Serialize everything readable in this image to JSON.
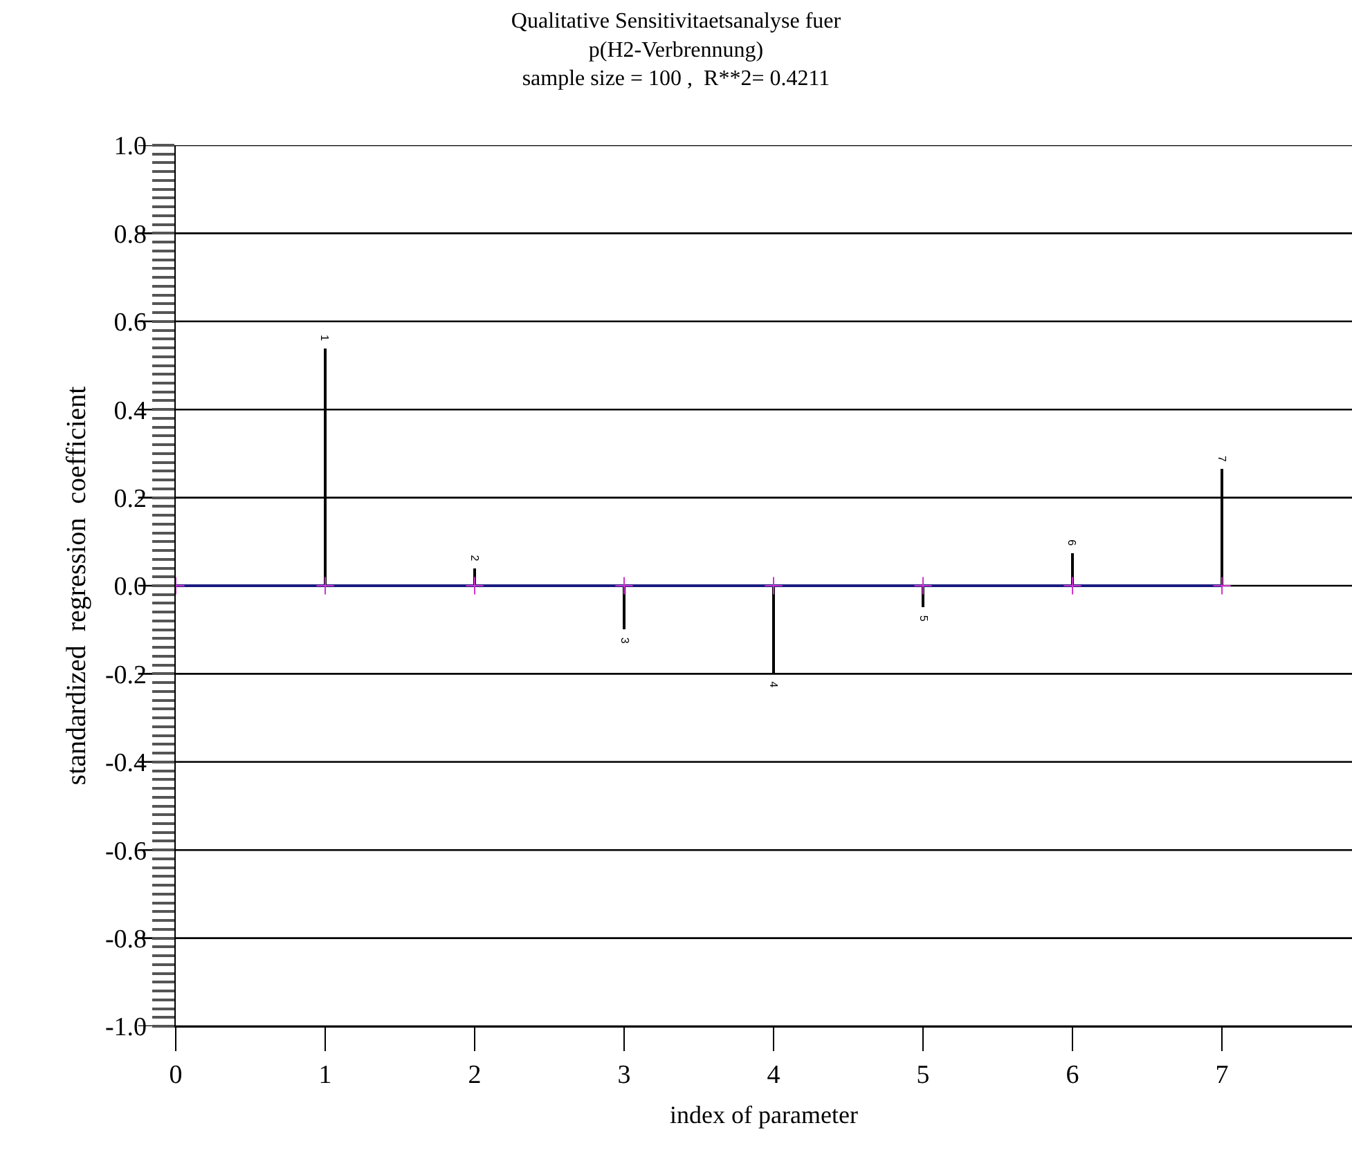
{
  "chart_data": {
    "type": "bar",
    "title": "Qualitative Sensitivitaetsanalyse fuer\np(H2-Verbrennung)\nsample size = 100 ,  R**2= 0.4211",
    "xlabel": "index of parameter",
    "ylabel": "standardized  regression  coefficient",
    "xlim": [
      0,
      7.87
    ],
    "xticks": [
      0,
      1,
      2,
      3,
      4,
      5,
      6,
      7
    ],
    "ylim": [
      -1,
      1
    ],
    "yticks": [
      {
        "value": -1,
        "label": "-1.0"
      },
      {
        "value": -0.98,
        "label": null
      },
      {
        "value": -0.96,
        "label": null
      },
      {
        "value": -0.94,
        "label": null
      },
      {
        "value": -0.92,
        "label": null
      },
      {
        "value": -0.9,
        "label": null
      },
      {
        "value": -0.88,
        "label": null
      },
      {
        "value": -0.86,
        "label": null
      },
      {
        "value": -0.84,
        "label": null
      },
      {
        "value": -0.82,
        "label": null
      },
      {
        "value": -0.8,
        "label": "-0.8"
      },
      {
        "value": -0.78,
        "label": null
      },
      {
        "value": -0.76,
        "label": null
      },
      {
        "value": -0.74,
        "label": null
      },
      {
        "value": -0.72,
        "label": null
      },
      {
        "value": -0.7,
        "label": null
      },
      {
        "value": -0.68,
        "label": null
      },
      {
        "value": -0.66,
        "label": null
      },
      {
        "value": -0.64,
        "label": null
      },
      {
        "value": -0.62,
        "label": null
      },
      {
        "value": -0.6,
        "label": "-0.6"
      },
      {
        "value": -0.58,
        "label": null
      },
      {
        "value": -0.56,
        "label": null
      },
      {
        "value": -0.54,
        "label": null
      },
      {
        "value": -0.52,
        "label": null
      },
      {
        "value": -0.5,
        "label": null
      },
      {
        "value": -0.48,
        "label": null
      },
      {
        "value": -0.46,
        "label": null
      },
      {
        "value": -0.44,
        "label": null
      },
      {
        "value": -0.42,
        "label": null
      },
      {
        "value": -0.4,
        "label": "-0.4"
      },
      {
        "value": -0.38,
        "label": null
      },
      {
        "value": -0.36,
        "label": null
      },
      {
        "value": -0.34,
        "label": null
      },
      {
        "value": -0.32,
        "label": null
      },
      {
        "value": -0.3,
        "label": null
      },
      {
        "value": -0.28,
        "label": null
      },
      {
        "value": -0.26,
        "label": null
      },
      {
        "value": -0.24,
        "label": null
      },
      {
        "value": -0.22,
        "label": null
      },
      {
        "value": -0.2,
        "label": "-0.2"
      },
      {
        "value": -0.18,
        "label": null
      },
      {
        "value": -0.16,
        "label": null
      },
      {
        "value": -0.14,
        "label": null
      },
      {
        "value": -0.12,
        "label": null
      },
      {
        "value": -0.1,
        "label": null
      },
      {
        "value": -0.08,
        "label": null
      },
      {
        "value": -0.06,
        "label": null
      },
      {
        "value": -0.04,
        "label": null
      },
      {
        "value": -0.02,
        "label": null
      },
      {
        "value": 0,
        "label": "0.0"
      },
      {
        "value": 0.02,
        "label": null
      },
      {
        "value": 0.04,
        "label": null
      },
      {
        "value": 0.06,
        "label": null
      },
      {
        "value": 0.08,
        "label": null
      },
      {
        "value": 0.1,
        "label": null
      },
      {
        "value": 0.12,
        "label": null
      },
      {
        "value": 0.14,
        "label": null
      },
      {
        "value": 0.16,
        "label": null
      },
      {
        "value": 0.18,
        "label": null
      },
      {
        "value": 0.2,
        "label": "0.2"
      },
      {
        "value": 0.22,
        "label": null
      },
      {
        "value": 0.24,
        "label": null
      },
      {
        "value": 0.26,
        "label": null
      },
      {
        "value": 0.28,
        "label": null
      },
      {
        "value": 0.3,
        "label": null
      },
      {
        "value": 0.32,
        "label": null
      },
      {
        "value": 0.34,
        "label": null
      },
      {
        "value": 0.36,
        "label": null
      },
      {
        "value": 0.38,
        "label": null
      },
      {
        "value": 0.4,
        "label": "0.4"
      },
      {
        "value": 0.42,
        "label": null
      },
      {
        "value": 0.44,
        "label": null
      },
      {
        "value": 0.46,
        "label": null
      },
      {
        "value": 0.48,
        "label": null
      },
      {
        "value": 0.5,
        "label": null
      },
      {
        "value": 0.52,
        "label": null
      },
      {
        "value": 0.54,
        "label": null
      },
      {
        "value": 0.56,
        "label": null
      },
      {
        "value": 0.58,
        "label": null
      },
      {
        "value": 0.6,
        "label": "0.6"
      },
      {
        "value": 0.62,
        "label": null
      },
      {
        "value": 0.64,
        "label": null
      },
      {
        "value": 0.66,
        "label": null
      },
      {
        "value": 0.68,
        "label": null
      },
      {
        "value": 0.7,
        "label": null
      },
      {
        "value": 0.72,
        "label": null
      },
      {
        "value": 0.74,
        "label": null
      },
      {
        "value": 0.76,
        "label": null
      },
      {
        "value": 0.78,
        "label": null
      },
      {
        "value": 0.8,
        "label": "0.8"
      },
      {
        "value": 0.82,
        "label": null
      },
      {
        "value": 0.84,
        "label": null
      },
      {
        "value": 0.86,
        "label": null
      },
      {
        "value": 0.88,
        "label": null
      },
      {
        "value": 0.9,
        "label": null
      },
      {
        "value": 0.92,
        "label": null
      },
      {
        "value": 0.94,
        "label": null
      },
      {
        "value": 0.96,
        "label": null
      },
      {
        "value": 0.98,
        "label": null
      },
      {
        "value": 1,
        "label": "1.0"
      }
    ],
    "grid": "y",
    "legend": false,
    "series": [
      {
        "color": "#000000",
        "x": [
          1,
          2,
          3,
          4,
          5,
          6,
          7
        ],
        "values": [
          0.54,
          0.04,
          -0.1,
          -0.2,
          -0.05,
          0.075,
          0.265
        ]
      },
      {
        "type": "line",
        "color": "#1a1a80",
        "x": [
          0,
          1,
          2,
          3,
          4,
          5,
          6,
          7
        ],
        "values": [
          0,
          0,
          0,
          0,
          0,
          0,
          0,
          0
        ],
        "marker": "none"
      },
      {
        "type": "scatter",
        "color": "#cc33cc",
        "x": [
          0,
          1,
          2,
          3,
          4,
          5,
          6,
          7
        ],
        "values": [
          0,
          0,
          0,
          0,
          0,
          0,
          0,
          0
        ],
        "marker": "cross"
      }
    ],
    "annotations": [
      {
        "text": "1",
        "x": 1,
        "y": 0.54
      },
      {
        "text": "2",
        "x": 2,
        "y": 0.04
      },
      {
        "text": "3",
        "x": 3,
        "y": -0.1
      },
      {
        "text": "4",
        "x": 4,
        "y": -0.2
      },
      {
        "text": "5",
        "x": 5,
        "y": -0.05
      },
      {
        "text": "6",
        "x": 6,
        "y": 0.075
      },
      {
        "text": "7",
        "x": 7,
        "y": 0.265
      }
    ]
  }
}
